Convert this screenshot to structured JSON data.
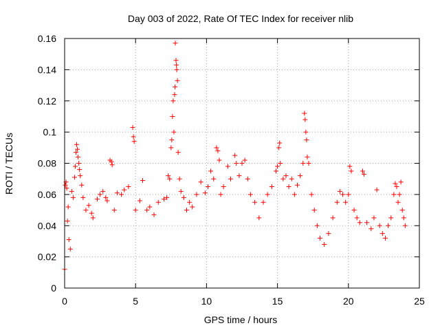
{
  "chart_data": {
    "type": "scatter",
    "title": "Day 003 of 2022, Rate Of TEC Index for receiver nlib",
    "xlabel": "GPS time / hours",
    "ylabel": "ROTI / TECUs",
    "xlim": [
      0,
      25
    ],
    "ylim": [
      0,
      0.16
    ],
    "xticks": [
      0,
      5,
      10,
      15,
      20,
      25
    ],
    "xtick_labels": [
      "0",
      "5",
      "10",
      "15",
      "20",
      "25"
    ],
    "yticks": [
      0,
      0.02,
      0.04,
      0.06,
      0.08,
      0.1,
      0.12,
      0.14,
      0.16
    ],
    "ytick_labels": [
      "0",
      "0.02",
      "0.04",
      "0.06",
      "0.08",
      "0.1",
      "0.12",
      "0.14",
      "0.16"
    ],
    "grid": true,
    "grid_style": "dotted",
    "marker": "+",
    "marker_color": "#ff0000",
    "series": [
      {
        "points": [
          [
            0.0,
            0.012
          ],
          [
            0.05,
            0.066
          ],
          [
            0.1,
            0.068
          ],
          [
            0.15,
            0.064
          ],
          [
            0.2,
            0.043
          ],
          [
            0.25,
            0.052
          ],
          [
            0.3,
            0.031
          ],
          [
            0.4,
            0.025
          ],
          [
            0.5,
            0.062
          ],
          [
            0.6,
            0.058
          ],
          [
            0.7,
            0.071
          ],
          [
            0.75,
            0.078
          ],
          [
            0.8,
            0.087
          ],
          [
            0.85,
            0.092
          ],
          [
            0.9,
            0.089
          ],
          [
            0.95,
            0.084
          ],
          [
            1.0,
            0.08
          ],
          [
            1.05,
            0.076
          ],
          [
            1.1,
            0.072
          ],
          [
            1.2,
            0.066
          ],
          [
            1.3,
            0.058
          ],
          [
            1.5,
            0.05
          ],
          [
            1.7,
            0.053
          ],
          [
            1.9,
            0.048
          ],
          [
            2.0,
            0.045
          ],
          [
            2.3,
            0.057
          ],
          [
            2.5,
            0.06
          ],
          [
            2.7,
            0.062
          ],
          [
            2.9,
            0.058
          ],
          [
            3.0,
            0.056
          ],
          [
            3.2,
            0.082
          ],
          [
            3.3,
            0.081
          ],
          [
            3.35,
            0.079
          ],
          [
            3.5,
            0.05
          ],
          [
            3.7,
            0.061
          ],
          [
            4.0,
            0.06
          ],
          [
            4.2,
            0.063
          ],
          [
            4.5,
            0.065
          ],
          [
            4.8,
            0.103
          ],
          [
            4.85,
            0.097
          ],
          [
            4.9,
            0.094
          ],
          [
            5.0,
            0.05
          ],
          [
            5.3,
            0.056
          ],
          [
            5.5,
            0.069
          ],
          [
            5.8,
            0.05
          ],
          [
            6.0,
            0.052
          ],
          [
            6.3,
            0.047
          ],
          [
            6.6,
            0.055
          ],
          [
            7.0,
            0.057
          ],
          [
            7.2,
            0.058
          ],
          [
            7.3,
            0.072
          ],
          [
            7.4,
            0.07
          ],
          [
            7.5,
            0.09
          ],
          [
            7.55,
            0.095
          ],
          [
            7.6,
            0.11
          ],
          [
            7.65,
            0.12
          ],
          [
            7.7,
            0.1
          ],
          [
            7.75,
            0.124
          ],
          [
            7.78,
            0.129
          ],
          [
            7.8,
            0.157
          ],
          [
            7.85,
            0.146
          ],
          [
            7.88,
            0.143
          ],
          [
            7.9,
            0.14
          ],
          [
            7.95,
            0.133
          ],
          [
            8.0,
            0.087
          ],
          [
            8.1,
            0.07
          ],
          [
            8.2,
            0.062
          ],
          [
            8.4,
            0.058
          ],
          [
            8.6,
            0.05
          ],
          [
            8.8,
            0.055
          ],
          [
            9.0,
            0.052
          ],
          [
            9.3,
            0.06
          ],
          [
            9.6,
            0.068
          ],
          [
            9.9,
            0.061
          ],
          [
            10.1,
            0.065
          ],
          [
            10.3,
            0.075
          ],
          [
            10.5,
            0.07
          ],
          [
            10.7,
            0.09
          ],
          [
            10.8,
            0.088
          ],
          [
            10.9,
            0.082
          ],
          [
            11.0,
            0.06
          ],
          [
            11.2,
            0.065
          ],
          [
            11.5,
            0.078
          ],
          [
            11.7,
            0.07
          ],
          [
            12.0,
            0.085
          ],
          [
            12.1,
            0.08
          ],
          [
            12.3,
            0.072
          ],
          [
            12.5,
            0.08
          ],
          [
            12.7,
            0.082
          ],
          [
            12.9,
            0.07
          ],
          [
            13.1,
            0.06
          ],
          [
            13.4,
            0.055
          ],
          [
            13.7,
            0.045
          ],
          [
            14.0,
            0.055
          ],
          [
            14.3,
            0.06
          ],
          [
            14.6,
            0.065
          ],
          [
            14.9,
            0.075
          ],
          [
            15.0,
            0.078
          ],
          [
            15.1,
            0.09
          ],
          [
            15.15,
            0.093
          ],
          [
            15.2,
            0.08
          ],
          [
            15.4,
            0.07
          ],
          [
            15.6,
            0.072
          ],
          [
            15.8,
            0.065
          ],
          [
            16.0,
            0.07
          ],
          [
            16.2,
            0.06
          ],
          [
            16.4,
            0.066
          ],
          [
            16.6,
            0.072
          ],
          [
            16.8,
            0.08
          ],
          [
            16.9,
            0.112
          ],
          [
            16.95,
            0.108
          ],
          [
            17.0,
            0.1
          ],
          [
            17.05,
            0.095
          ],
          [
            17.1,
            0.084
          ],
          [
            17.2,
            0.08
          ],
          [
            17.4,
            0.06
          ],
          [
            17.6,
            0.05
          ],
          [
            17.8,
            0.04
          ],
          [
            18.0,
            0.032
          ],
          [
            18.3,
            0.028
          ],
          [
            18.6,
            0.035
          ],
          [
            18.9,
            0.045
          ],
          [
            19.2,
            0.055
          ],
          [
            19.4,
            0.062
          ],
          [
            19.6,
            0.06
          ],
          [
            19.8,
            0.055
          ],
          [
            20.0,
            0.06
          ],
          [
            20.1,
            0.078
          ],
          [
            20.2,
            0.075
          ],
          [
            20.4,
            0.05
          ],
          [
            20.6,
            0.045
          ],
          [
            20.8,
            0.042
          ],
          [
            21.0,
            0.075
          ],
          [
            21.1,
            0.073
          ],
          [
            21.3,
            0.042
          ],
          [
            21.6,
            0.038
          ],
          [
            21.8,
            0.045
          ],
          [
            22.0,
            0.063
          ],
          [
            22.2,
            0.04
          ],
          [
            22.4,
            0.035
          ],
          [
            22.6,
            0.032
          ],
          [
            22.8,
            0.04
          ],
          [
            23.0,
            0.045
          ],
          [
            23.2,
            0.06
          ],
          [
            23.3,
            0.067
          ],
          [
            23.4,
            0.065
          ],
          [
            23.5,
            0.055
          ],
          [
            23.6,
            0.06
          ],
          [
            23.7,
            0.068
          ],
          [
            23.8,
            0.05
          ],
          [
            23.9,
            0.045
          ],
          [
            24.0,
            0.04
          ]
        ]
      }
    ]
  }
}
